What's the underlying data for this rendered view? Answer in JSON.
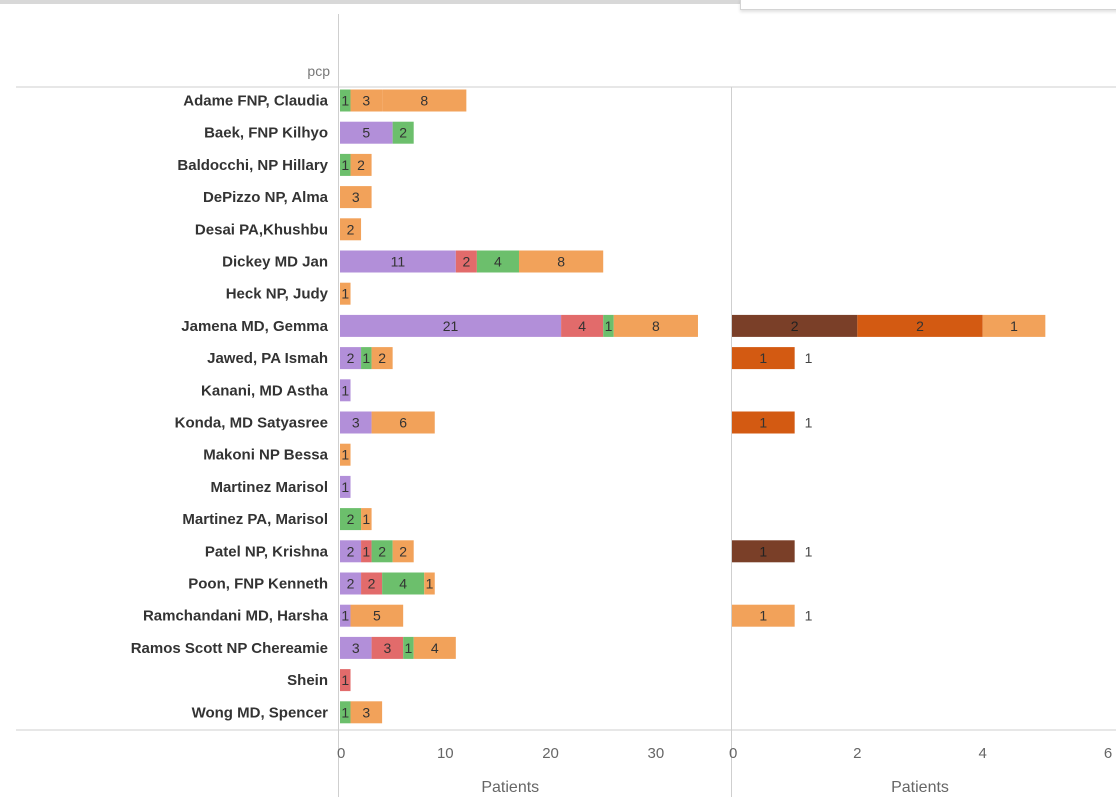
{
  "chart_data": {
    "type": "bar",
    "orientation": "horizontal",
    "stacked": true,
    "row_header": "pcp",
    "categories": [
      "Adame FNP, Claudia",
      "Baek, FNP Kilhyo",
      "Baldocchi, NP Hillary",
      "DePizzo NP, Alma",
      "Desai PA,Khushbu",
      "Dickey MD Jan",
      "Heck NP, Judy",
      "Jamena MD, Gemma",
      "Jawed, PA Ismah",
      "Kanani, MD Astha",
      "Konda, MD Satyasree",
      "Makoni NP Bessa",
      "Martinez Marisol",
      "Martinez PA,  Marisol",
      "Patel NP, Krishna",
      "Poon, FNP Kenneth",
      "Ramchandani MD, Harsha",
      "Ramos Scott NP Chereamie",
      "Shein",
      "Wong MD, Spencer"
    ],
    "panels": [
      {
        "xlabel": "Patients",
        "xlim": [
          0,
          35
        ],
        "xticks": [
          0,
          10,
          20,
          30
        ],
        "series": [
          {
            "color": "#b28fd9",
            "values": [
              0,
              5,
              0,
              0,
              0,
              11,
              0,
              21,
              2,
              1,
              3,
              0,
              1,
              0,
              2,
              2,
              1,
              3,
              0,
              0
            ]
          },
          {
            "color": "#e26b6b",
            "values": [
              0,
              0,
              0,
              0,
              0,
              2,
              0,
              4,
              0,
              0,
              0,
              0,
              0,
              0,
              1,
              2,
              0,
              3,
              1,
              0
            ]
          },
          {
            "color": "#6cbf6c",
            "values": [
              1,
              2,
              1,
              0,
              0,
              4,
              0,
              1,
              1,
              0,
              0,
              0,
              0,
              2,
              2,
              4,
              0,
              1,
              0,
              1
            ]
          },
          {
            "color": "#f2a25a",
            "values": [
              3,
              0,
              0,
              0,
              0,
              0,
              0,
              0,
              0,
              0,
              0,
              0,
              0,
              0,
              0,
              0,
              0,
              0,
              0,
              0
            ]
          },
          {
            "color": "#f2a25a",
            "values": [
              8,
              0,
              2,
              3,
              2,
              8,
              1,
              8,
              2,
              0,
              6,
              1,
              0,
              1,
              2,
              1,
              5,
              4,
              0,
              3
            ]
          }
        ]
      },
      {
        "xlabel": "Patients",
        "xlim": [
          0,
          6
        ],
        "xticks": [
          0,
          2,
          4,
          6
        ],
        "series": [
          {
            "color": "#7a3f28",
            "values": [
              0,
              0,
              0,
              0,
              0,
              0,
              0,
              2,
              0,
              0,
              0,
              0,
              0,
              0,
              1,
              0,
              0,
              0,
              0,
              0
            ]
          },
          {
            "color": "#d35a12",
            "values": [
              0,
              0,
              0,
              0,
              0,
              0,
              0,
              2,
              1,
              0,
              1,
              0,
              0,
              0,
              0,
              0,
              0,
              0,
              0,
              0
            ]
          },
          {
            "color": "#f2a25a",
            "values": [
              0,
              0,
              0,
              0,
              0,
              0,
              0,
              1,
              0,
              0,
              0,
              0,
              0,
              0,
              0,
              0,
              1,
              0,
              0,
              0
            ]
          }
        ]
      }
    ]
  }
}
